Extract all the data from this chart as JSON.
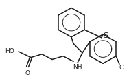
{
  "bg_color": "#ffffff",
  "line_color": "#1a1a1a",
  "line_width": 1.1,
  "font_size": 6.5,
  "figsize": [
    1.88,
    1.12
  ],
  "dpi": 100,
  "xlim": [
    0,
    188
  ],
  "ylim": [
    0,
    112
  ]
}
